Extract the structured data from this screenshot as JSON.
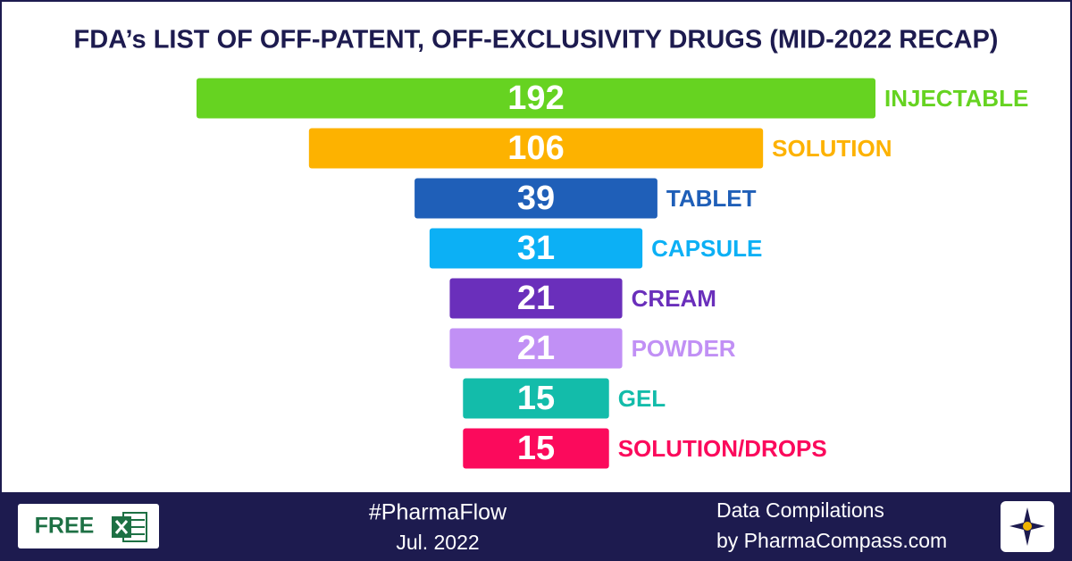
{
  "chart_data": {
    "type": "funnel",
    "title": "FDA’s LIST OF OFF-PATENT, OFF-EXCLUSIVITY DRUGS (MID-2022 RECAP)",
    "categories": [
      "INJECTABLE",
      "SOLUTION",
      "TABLET",
      "CAPSULE",
      "CREAM",
      "POWDER",
      "GEL",
      "SOLUTION/DROPS"
    ],
    "values": [
      192,
      106,
      39,
      31,
      21,
      21,
      15,
      15
    ],
    "colors": [
      "#66d321",
      "#fdb200",
      "#1f5fb8",
      "#0cb0f5",
      "#6a2fbb",
      "#c190f5",
      "#13bcaa",
      "#fb0a5c"
    ]
  },
  "footer": {
    "button": "FREE",
    "hashtag": "#PharmaFlow",
    "date": "Jul. 2022",
    "credit_line1": "Data Compilations",
    "credit_line2": "by PharmaCompass.com"
  }
}
